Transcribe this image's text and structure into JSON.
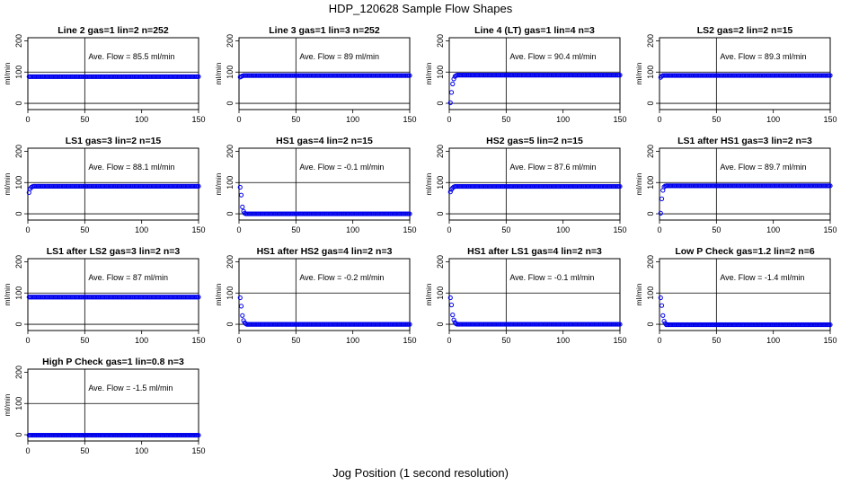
{
  "figure": {
    "title": "HDP_120628  Sample Flow Shapes",
    "xlabel": "Jog Position (1 second resolution)"
  },
  "chart_data": [
    {
      "type": "scatter",
      "title": "Line 2 gas=1 lin=2 n=252",
      "ylabel": "ml/min",
      "annotation": "Ave. Flow =  85.5  ml/min",
      "xlim": [
        0,
        150
      ],
      "ylim": [
        -20,
        210
      ],
      "xticks": [
        0,
        50,
        100,
        150
      ],
      "yticks": [
        0,
        100,
        200
      ],
      "vline": 50,
      "hlines": [
        0,
        100
      ],
      "marker_color": "#0000ee",
      "x": [
        1,
        150
      ],
      "y": [
        85.5,
        85.5
      ],
      "profile": [],
      "plateau": 85.5
    },
    {
      "type": "scatter",
      "title": "Line 3 gas=1 lin=3 n=252",
      "ylabel": "ml/min",
      "annotation": "Ave. Flow =  89  ml/min",
      "xlim": [
        0,
        150
      ],
      "ylim": [
        -20,
        210
      ],
      "xticks": [
        0,
        50,
        100,
        150
      ],
      "yticks": [
        0,
        100,
        200
      ],
      "vline": 50,
      "hlines": [
        0,
        100
      ],
      "marker_color": "#0000ee",
      "x": [
        1,
        150
      ],
      "y": [
        84,
        89
      ],
      "profile": [
        84,
        86,
        88
      ],
      "plateau": 89
    },
    {
      "type": "scatter",
      "title": "Line 4 (LT) gas=1 lin=4 n=3",
      "ylabel": "ml/min",
      "annotation": "Ave. Flow =  90.4  ml/min",
      "xlim": [
        0,
        150
      ],
      "ylim": [
        -20,
        210
      ],
      "xticks": [
        0,
        50,
        100,
        150
      ],
      "yticks": [
        0,
        100,
        200
      ],
      "vline": 50,
      "hlines": [
        0,
        100
      ],
      "marker_color": "#0000ee",
      "x": [
        1,
        150
      ],
      "y": [
        0,
        90.4
      ],
      "profile": [
        2,
        35,
        62,
        78,
        86,
        89
      ],
      "plateau": 90.4
    },
    {
      "type": "scatter",
      "title": "LS2 gas=2 lin=2 n=15",
      "ylabel": "ml/min",
      "annotation": "Ave. Flow =  89.3  ml/min",
      "xlim": [
        0,
        150
      ],
      "ylim": [
        -20,
        210
      ],
      "xticks": [
        0,
        50,
        100,
        150
      ],
      "yticks": [
        0,
        100,
        200
      ],
      "vline": 50,
      "hlines": [
        0,
        100
      ],
      "marker_color": "#0000ee",
      "x": [
        1,
        150
      ],
      "y": [
        83,
        89.3
      ],
      "profile": [
        83,
        87
      ],
      "plateau": 89.3
    },
    {
      "type": "scatter",
      "title": "LS1 gas=3 lin=2 n=15",
      "ylabel": "ml/min",
      "annotation": "Ave. Flow =  88.1  ml/min",
      "xlim": [
        0,
        150
      ],
      "ylim": [
        -20,
        210
      ],
      "xticks": [
        0,
        50,
        100,
        150
      ],
      "yticks": [
        0,
        100,
        200
      ],
      "vline": 50,
      "hlines": [
        0,
        100
      ],
      "marker_color": "#0000ee",
      "x": [
        1,
        150
      ],
      "y": [
        68,
        88.1
      ],
      "profile": [
        68,
        80,
        85,
        87
      ],
      "plateau": 88.1
    },
    {
      "type": "scatter",
      "title": "HS1 gas=4 lin=2 n=15",
      "ylabel": "ml/min",
      "annotation": "Ave. Flow =  -0.1  ml/min",
      "xlim": [
        0,
        150
      ],
      "ylim": [
        -20,
        210
      ],
      "xticks": [
        0,
        50,
        100,
        150
      ],
      "yticks": [
        0,
        100,
        200
      ],
      "vline": 50,
      "hlines": [
        0,
        100
      ],
      "marker_color": "#0000ee",
      "x": [
        1,
        150
      ],
      "y": [
        85,
        -0.1
      ],
      "profile": [
        85,
        60,
        22,
        8,
        2
      ],
      "plateau": -0.1
    },
    {
      "type": "scatter",
      "title": "HS2 gas=5 lin=2 n=15",
      "ylabel": "ml/min",
      "annotation": "Ave. Flow =  87.6  ml/min",
      "xlim": [
        0,
        150
      ],
      "ylim": [
        -20,
        210
      ],
      "xticks": [
        0,
        50,
        100,
        150
      ],
      "yticks": [
        0,
        100,
        200
      ],
      "vline": 50,
      "hlines": [
        0,
        100
      ],
      "marker_color": "#0000ee",
      "x": [
        1,
        150
      ],
      "y": [
        70,
        87.6
      ],
      "profile": [
        70,
        78,
        83,
        86
      ],
      "plateau": 87.6
    },
    {
      "type": "scatter",
      "title": "LS1 after HS1 gas=3 lin=2 n=3",
      "ylabel": "ml/min",
      "annotation": "Ave. Flow =  89.7  ml/min",
      "xlim": [
        0,
        150
      ],
      "ylim": [
        -20,
        210
      ],
      "xticks": [
        0,
        50,
        100,
        150
      ],
      "yticks": [
        0,
        100,
        200
      ],
      "vline": 50,
      "hlines": [
        0,
        100
      ],
      "marker_color": "#0000ee",
      "x": [
        1,
        150
      ],
      "y": [
        0,
        89.7
      ],
      "profile": [
        2,
        48,
        75,
        86,
        89
      ],
      "plateau": 89.7
    },
    {
      "type": "scatter",
      "title": "LS1 after LS2 gas=3 lin=2 n=3",
      "ylabel": "ml/min",
      "annotation": "Ave. Flow =  87  ml/min",
      "xlim": [
        0,
        150
      ],
      "ylim": [
        -20,
        210
      ],
      "xticks": [
        0,
        50,
        100,
        150
      ],
      "yticks": [
        0,
        100,
        200
      ],
      "vline": 50,
      "hlines": [
        0,
        100
      ],
      "marker_color": "#0000ee",
      "x": [
        1,
        150
      ],
      "y": [
        87,
        87
      ],
      "profile": [],
      "plateau": 87
    },
    {
      "type": "scatter",
      "title": "HS1 after HS2 gas=4 lin=2 n=3",
      "ylabel": "ml/min",
      "annotation": "Ave. Flow =  -0.2  ml/min",
      "xlim": [
        0,
        150
      ],
      "ylim": [
        -20,
        210
      ],
      "xticks": [
        0,
        50,
        100,
        150
      ],
      "yticks": [
        0,
        100,
        200
      ],
      "vline": 50,
      "hlines": [
        0,
        100
      ],
      "marker_color": "#0000ee",
      "x": [
        1,
        150
      ],
      "y": [
        85,
        -0.2
      ],
      "profile": [
        85,
        58,
        28,
        12,
        5,
        2
      ],
      "plateau": -0.2
    },
    {
      "type": "scatter",
      "title": "HS1 after LS1 gas=4 lin=2 n=3",
      "ylabel": "ml/min",
      "annotation": "Ave. Flow =  -0.1  ml/min",
      "xlim": [
        0,
        150
      ],
      "ylim": [
        -20,
        210
      ],
      "xticks": [
        0,
        50,
        100,
        150
      ],
      "yticks": [
        0,
        100,
        200
      ],
      "vline": 50,
      "hlines": [
        0,
        100
      ],
      "marker_color": "#0000ee",
      "x": [
        1,
        150
      ],
      "y": [
        85,
        -0.1
      ],
      "profile": [
        85,
        62,
        30,
        14,
        6,
        2
      ],
      "plateau": -0.1
    },
    {
      "type": "scatter",
      "title": "Low P Check gas=1.2 lin=2 n=6",
      "ylabel": "ml/min",
      "annotation": "Ave. Flow =  -1.4  ml/min",
      "xlim": [
        0,
        150
      ],
      "ylim": [
        -20,
        210
      ],
      "xticks": [
        0,
        50,
        100,
        150
      ],
      "yticks": [
        0,
        100,
        200
      ],
      "vline": 50,
      "hlines": [
        0,
        100
      ],
      "marker_color": "#0000ee",
      "x": [
        1,
        150
      ],
      "y": [
        85,
        -1.4
      ],
      "profile": [
        85,
        60,
        28,
        10,
        3
      ],
      "plateau": -1.4
    },
    {
      "type": "scatter",
      "title": "High P Check gas=1 lin=0.8 n=3",
      "ylabel": "ml/min",
      "annotation": "Ave. Flow =  -1.5  ml/min",
      "xlim": [
        0,
        150
      ],
      "ylim": [
        -20,
        210
      ],
      "xticks": [
        0,
        50,
        100,
        150
      ],
      "yticks": [
        0,
        100,
        200
      ],
      "vline": 50,
      "hlines": [
        0,
        100
      ],
      "marker_color": "#0000ee",
      "x": [
        1,
        150
      ],
      "y": [
        -1.5,
        -1.5
      ],
      "profile": [],
      "plateau": -1.5
    }
  ]
}
